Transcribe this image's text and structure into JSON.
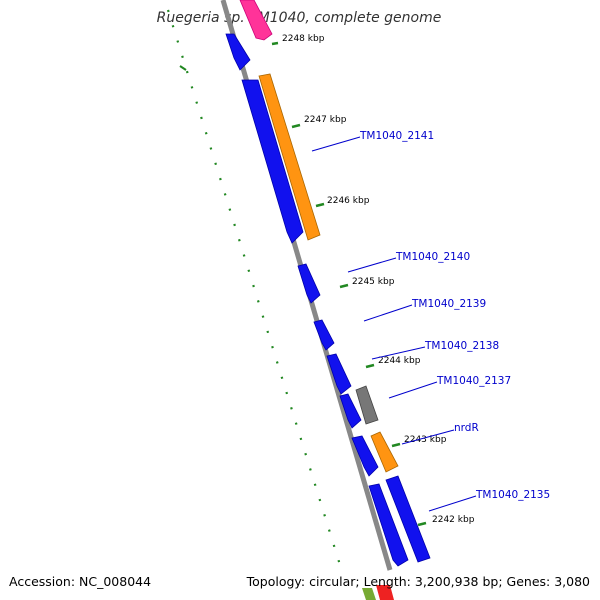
{
  "title": "Ruegeria sp. TM1040, complete genome",
  "footer": {
    "accession": "Accession: NC_008044",
    "topology": "Topology: circular; Length: 3,200,938 bp; Genes: 3,080"
  },
  "ticks": [
    {
      "label": "2248 kbp"
    },
    {
      "label": "2247 kbp"
    },
    {
      "label": "2246 kbp"
    },
    {
      "label": "2245 kbp"
    },
    {
      "label": "2244 kbp"
    },
    {
      "label": "2243 kbp"
    },
    {
      "label": "2242 kbp"
    }
  ],
  "genes": [
    {
      "label": "TM1040_2141"
    },
    {
      "label": "TM1040_2140"
    },
    {
      "label": "TM1040_2139"
    },
    {
      "label": "TM1040_2138"
    },
    {
      "label": "TM1040_2137"
    },
    {
      "label": "nrdR"
    },
    {
      "label": "TM1040_2135"
    }
  ],
  "colors": {
    "cds": "#1111ee",
    "orange": "#ff9411",
    "pink": "#ff3399",
    "gray_gene": "#777777",
    "backbone": "#888888",
    "tick": "#228822",
    "label_line": "#0000cc"
  }
}
